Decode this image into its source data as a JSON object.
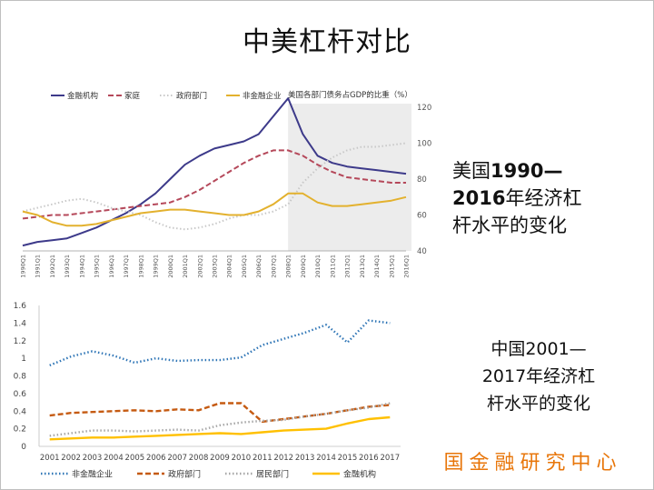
{
  "slide_title": "中美杠杆对比",
  "us_caption": {
    "line1_a": "美国",
    "line1_b": "1990—",
    "line2_a": "2016",
    "line2_b": "年经济杠",
    "line3": "杆水平的变化"
  },
  "cn_caption": {
    "line1": "中国2001—",
    "line2": "2017年经济杠",
    "line3": "杆水平的变化"
  },
  "logo_text": "国金融研究中心",
  "chart_data": [
    {
      "type": "line",
      "title": "美国各部门债务占GDP的比重（%）",
      "x": [
        "1990Q1",
        "1991Q1",
        "1992Q1",
        "1993Q1",
        "1994Q1",
        "1995Q1",
        "1996Q1",
        "1997Q1",
        "1998Q1",
        "1999Q1",
        "2000Q1",
        "2001Q1",
        "2002Q1",
        "2003Q1",
        "2004Q1",
        "2005Q1",
        "2006Q1",
        "2007Q1",
        "2008Q1",
        "2009Q1",
        "2010Q1",
        "2011Q1",
        "2012Q1",
        "2013Q1",
        "2014Q1",
        "2015Q1",
        "2016Q1"
      ],
      "ylim": [
        40,
        120
      ],
      "yticks": [
        40,
        60,
        80,
        100,
        120
      ],
      "y_axis_side": "right",
      "legend_position": "top-left",
      "shaded_region": [
        "2008Q1",
        "2016Q1"
      ],
      "series": [
        {
          "name": "金融机构",
          "color": "#3d3a8a",
          "dash": "solid",
          "values": [
            43,
            45,
            46,
            47,
            50,
            53,
            57,
            61,
            66,
            72,
            80,
            88,
            93,
            97,
            99,
            101,
            105,
            115,
            125,
            105,
            93,
            89,
            87,
            86,
            85,
            84,
            83
          ]
        },
        {
          "name": "家庭",
          "color": "#b5485a",
          "dash": "dash",
          "values": [
            58,
            59,
            60,
            60,
            61,
            62,
            63,
            64,
            65,
            66,
            67,
            70,
            74,
            79,
            84,
            89,
            93,
            96,
            96,
            93,
            88,
            84,
            81,
            80,
            79,
            78,
            78
          ]
        },
        {
          "name": "政府部门",
          "color": "#c8c8c8",
          "dash": "dot",
          "values": [
            62,
            64,
            66,
            68,
            69,
            67,
            64,
            62,
            60,
            56,
            53,
            52,
            53,
            55,
            58,
            60,
            60,
            62,
            66,
            78,
            86,
            92,
            96,
            98,
            98,
            99,
            100
          ]
        },
        {
          "name": "非金融企业",
          "color": "#e3b12e",
          "dash": "solid",
          "values": [
            62,
            60,
            56,
            54,
            54,
            55,
            57,
            59,
            61,
            62,
            63,
            63,
            62,
            61,
            60,
            60,
            62,
            66,
            72,
            72,
            67,
            65,
            65,
            66,
            67,
            68,
            70
          ]
        }
      ]
    },
    {
      "type": "line",
      "x": [
        "2001",
        "2002",
        "2003",
        "2004",
        "2005",
        "2006",
        "2007",
        "2008",
        "2009",
        "2010",
        "2011",
        "2012",
        "2013",
        "2014",
        "2015",
        "2016",
        "2017"
      ],
      "ylim": [
        0,
        1.6
      ],
      "yticks": [
        "0",
        "0.2",
        "0.4",
        "0.6",
        "0.8",
        "1",
        "1.2",
        "1.4",
        "1.6"
      ],
      "legend_position": "bottom",
      "series": [
        {
          "name": "非金融企业",
          "color": "#2e75b6",
          "dash": "dot",
          "values": [
            0.92,
            1.02,
            1.08,
            1.03,
            0.95,
            1.0,
            0.97,
            0.98,
            0.98,
            1.01,
            1.15,
            1.22,
            1.29,
            1.38,
            1.18,
            1.43,
            1.4
          ]
        },
        {
          "name": "政府部门",
          "color": "#c55a11",
          "dash": "dash",
          "values": [
            0.35,
            0.38,
            0.39,
            0.4,
            0.41,
            0.4,
            0.42,
            0.41,
            0.49,
            0.49,
            0.28,
            0.31,
            0.34,
            0.37,
            0.41,
            0.45,
            0.47
          ]
        },
        {
          "name": "居民部门",
          "color": "#a6a6a6",
          "dash": "dot",
          "values": [
            0.12,
            0.15,
            0.18,
            0.18,
            0.17,
            0.18,
            0.19,
            0.18,
            0.24,
            0.27,
            0.29,
            0.3,
            0.34,
            0.37,
            0.41,
            0.44,
            0.49
          ]
        },
        {
          "name": "金融机构",
          "color": "#ffc000",
          "dash": "solid",
          "values": [
            0.08,
            0.09,
            0.1,
            0.1,
            0.11,
            0.12,
            0.13,
            0.14,
            0.15,
            0.14,
            0.16,
            0.18,
            0.19,
            0.2,
            0.26,
            0.31,
            0.33
          ]
        }
      ]
    }
  ]
}
